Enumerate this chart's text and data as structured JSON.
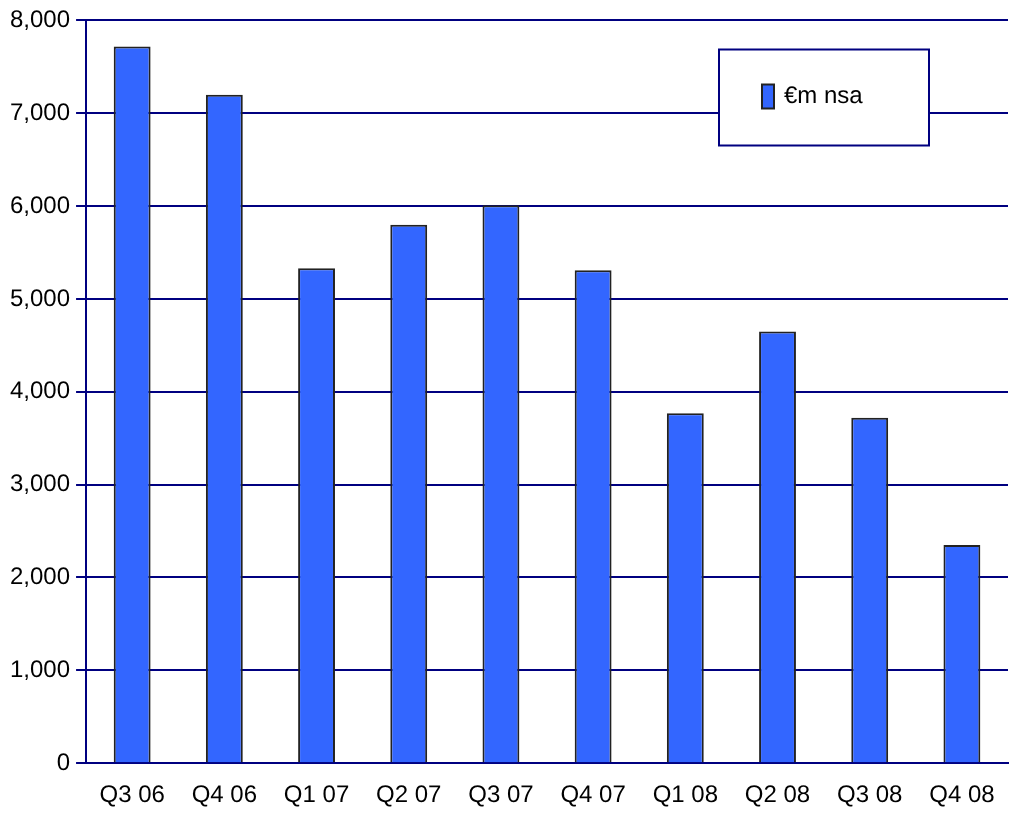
{
  "chart_data": {
    "type": "bar",
    "categories": [
      "Q3 06",
      "Q4 06",
      "Q1 07",
      "Q2 07",
      "Q3 07",
      "Q4 07",
      "Q1 08",
      "Q2 08",
      "Q3 08",
      "Q4 08"
    ],
    "series": [
      {
        "name": "€m nsa",
        "color": "#3366ff",
        "values": [
          7720,
          7200,
          5330,
          5800,
          6010,
          5310,
          3770,
          4650,
          3720,
          2350
        ]
      }
    ],
    "ylim": [
      0,
      8000
    ],
    "yticks": [
      {
        "value": 0,
        "label": "0"
      },
      {
        "value": 1000,
        "label": "1,000"
      },
      {
        "value": 2000,
        "label": "2,000"
      },
      {
        "value": 3000,
        "label": "3,000"
      },
      {
        "value": 4000,
        "label": "4,000"
      },
      {
        "value": 5000,
        "label": "5,000"
      },
      {
        "value": 6000,
        "label": "6,000"
      },
      {
        "value": 7000,
        "label": "7,000"
      },
      {
        "value": 8000,
        "label": "8,000"
      }
    ],
    "grid": "y",
    "legend": "top right"
  }
}
